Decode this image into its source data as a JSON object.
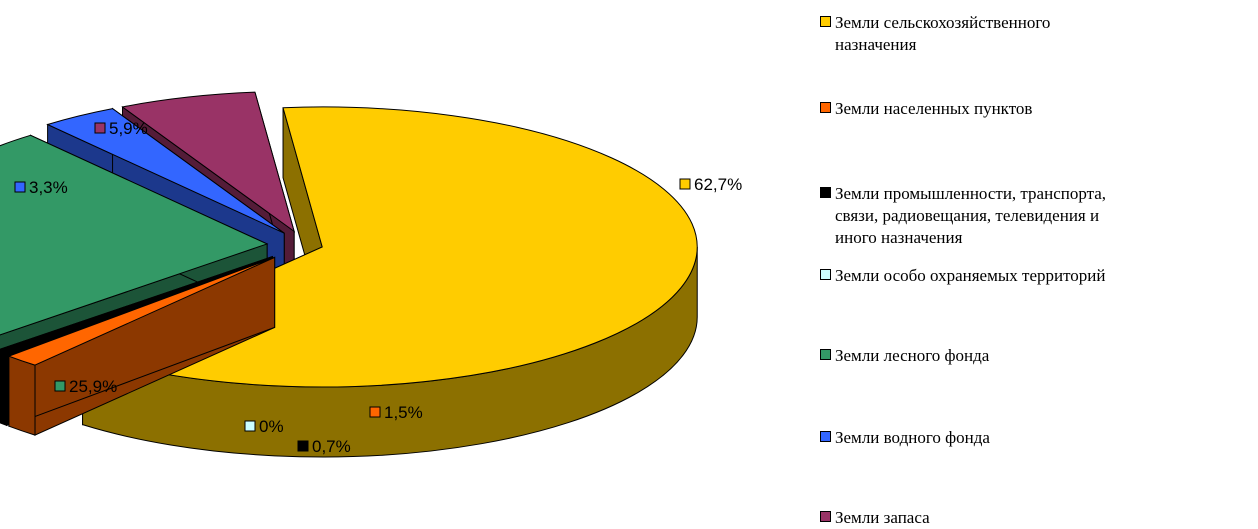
{
  "chart_data": {
    "type": "pie",
    "title": "",
    "style": "3d-exploded",
    "legend_position": "right",
    "series": [
      {
        "name": "Земли сельскохозяйственного назначения",
        "legend_text": "Земли сельскохозяйственного\nназначения",
        "value": 62.7,
        "label": "62,7%",
        "color": "#FFCC00"
      },
      {
        "name": "Земли населенных пунктов",
        "legend_text": "Земли населенных пунктов",
        "value": 1.5,
        "label": "1,5%",
        "color": "#FF6600"
      },
      {
        "name": "Земли промышленности, транспорта, связи, радиовещания, телевидения и иного назначения",
        "legend_text": "Земли промышленности, транспорта,\nсвязи, радиовещания, телевидения и\nиного назначения",
        "value": 0.7,
        "label": "0,7%",
        "color": "#000000"
      },
      {
        "name": "Земли особо охраняемых территорий",
        "legend_text": "Земли особо охраняемых территорий",
        "value": 0,
        "label": "0%",
        "color": "#CCFFFF"
      },
      {
        "name": "Земли лесного фонда",
        "legend_text": "Земли лесного фонда",
        "value": 25.9,
        "label": "25,9%",
        "color": "#339966"
      },
      {
        "name": "Земли водного фонда",
        "legend_text": "Земли водного фонда",
        "value": 3.3,
        "label": "3,3%",
        "color": "#3366FF"
      },
      {
        "name": "Земли запаса",
        "legend_text": "Земли запаса",
        "value": 5.9,
        "label": "5,9%",
        "color": "#993366"
      }
    ]
  }
}
